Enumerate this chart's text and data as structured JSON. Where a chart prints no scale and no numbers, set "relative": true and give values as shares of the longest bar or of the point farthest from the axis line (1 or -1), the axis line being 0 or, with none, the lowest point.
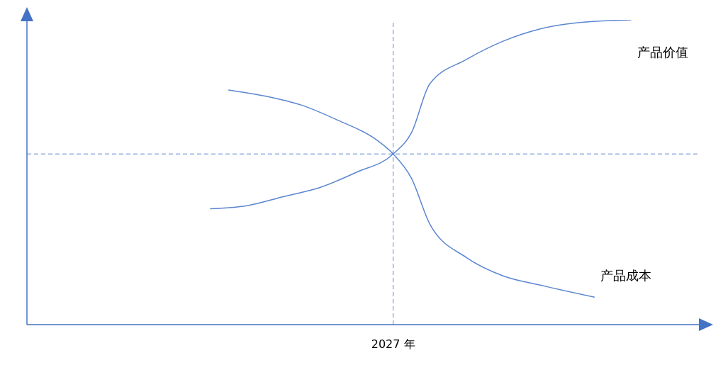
{
  "chart_data": {
    "type": "line",
    "relative": true,
    "categories": [
      null,
      null,
      null,
      null,
      null,
      null,
      null,
      null,
      null,
      null,
      null,
      null,
      null,
      null,
      null,
      null,
      null,
      null,
      null,
      null,
      null,
      null,
      null,
      null,
      null,
      null,
      null,
      null,
      null,
      null,
      null,
      null,
      null,
      null,
      null,
      null,
      null
    ],
    "series": [
      {
        "name": "产品价值",
        "color": "#5b86d0",
        "values": [
          null,
          null,
          null,
          null,
          null,
          null,
          null,
          null,
          null,
          null,
          0.38,
          null,
          0.39,
          null,
          0.42,
          null,
          0.45,
          null,
          0.5,
          null,
          0.56,
          0.63,
          0.79,
          null,
          0.87,
          null,
          0.93,
          null,
          0.97,
          null,
          0.99,
          null,
          null,
          1,
          null,
          null,
          null
        ]
      },
      {
        "name": "产品成本",
        "color": "#5b86d0",
        "values": [
          null,
          null,
          null,
          null,
          null,
          null,
          null,
          null,
          null,
          null,
          null,
          0.77,
          null,
          0.75,
          null,
          0.72,
          null,
          0.67,
          null,
          0.61,
          0.56,
          0.48,
          0.33,
          null,
          0.22,
          null,
          0.16,
          null,
          0.13,
          null,
          null,
          0.09,
          null,
          null,
          null,
          null,
          null
        ]
      }
    ],
    "ref_lines": [
      {
        "axis": "x",
        "value": "2027 年",
        "color": "#5b86d0",
        "line_style": "dashed"
      },
      {
        "axis": "y",
        "value": 0.56,
        "color": "#5b86d0",
        "line_style": "dashed"
      }
    ],
    "marker": "none",
    "line_style": "solid"
  }
}
